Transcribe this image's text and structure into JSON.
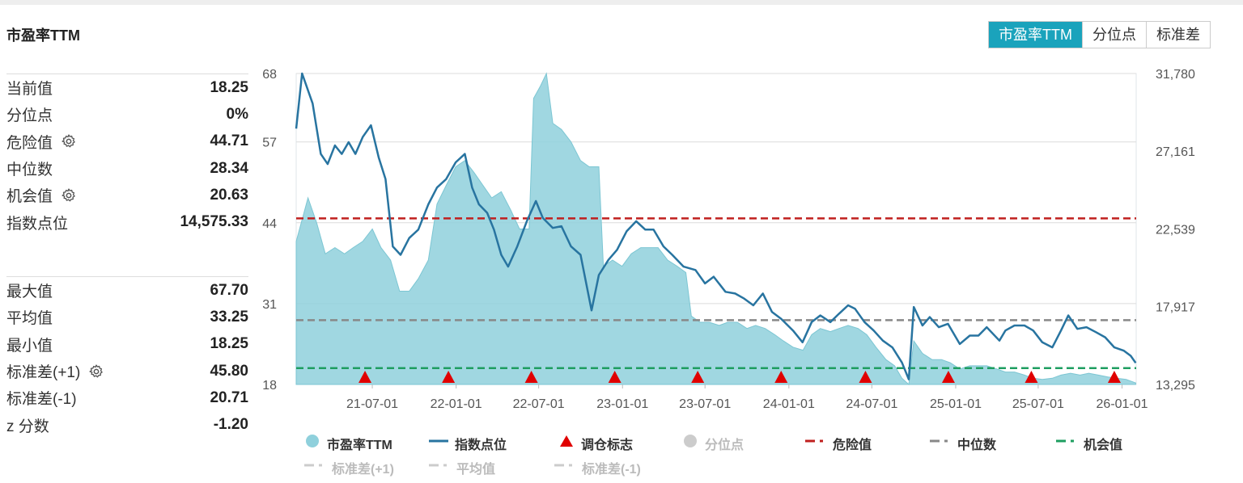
{
  "header": {
    "title": "市盈率TTM"
  },
  "tabs": [
    {
      "label": "市盈率TTM",
      "active": true
    },
    {
      "label": "分位点",
      "active": false
    },
    {
      "label": "标准差",
      "active": false
    }
  ],
  "stats_top": [
    {
      "label": "当前值",
      "value": "18.25",
      "gear": false
    },
    {
      "label": "分位点",
      "value": "0%",
      "gear": false
    },
    {
      "label": "危险值",
      "value": "44.71",
      "gear": true
    },
    {
      "label": "中位数",
      "value": "28.34",
      "gear": false
    },
    {
      "label": "机会值",
      "value": "20.63",
      "gear": true
    },
    {
      "label": "指数点位",
      "value": "14,575.33",
      "gear": false
    }
  ],
  "stats_bottom": [
    {
      "label": "最大值",
      "value": "67.70",
      "gear": false
    },
    {
      "label": "平均值",
      "value": "33.25",
      "gear": false
    },
    {
      "label": "最小值",
      "value": "18.25",
      "gear": false
    },
    {
      "label": "标准差(+1)",
      "value": "45.80",
      "gear": true
    },
    {
      "label": "标准差(-1)",
      "value": "20.71",
      "gear": false
    },
    {
      "label": "z 分数",
      "value": "-1.20",
      "gear": false
    }
  ],
  "legend": [
    {
      "label": "市盈率TTM",
      "type": "circle",
      "color": "#8fd0dc",
      "active": true
    },
    {
      "label": "指数点位",
      "type": "line",
      "color": "#2874a0",
      "active": true
    },
    {
      "label": "调仓标志",
      "type": "triangle",
      "color": "#e00000",
      "active": true
    },
    {
      "label": "分位点",
      "type": "circle",
      "color": "#cccccc",
      "active": false
    },
    {
      "label": "危险值",
      "type": "dash",
      "color": "#c0201f",
      "active": true
    },
    {
      "label": "中位数",
      "type": "dash",
      "color": "#888888",
      "active": true
    },
    {
      "label": "机会值",
      "type": "dash",
      "color": "#1e9e60",
      "active": true
    },
    {
      "label": "标准差(+1)",
      "type": "dash",
      "color": "#cccccc",
      "active": false
    },
    {
      "label": "平均值",
      "type": "dash",
      "color": "#cccccc",
      "active": false
    },
    {
      "label": "标准差(-1)",
      "type": "dash",
      "color": "#cccccc",
      "active": false
    }
  ],
  "chart_data": {
    "type": "area",
    "left_axis": {
      "ticks": [
        18,
        31,
        44,
        57,
        68
      ],
      "range": [
        18,
        68
      ]
    },
    "right_axis": {
      "ticks": [
        "13,295",
        "17,917",
        "22,539",
        "27,161",
        "31,780"
      ],
      "range": [
        13295,
        31780
      ]
    },
    "x_range": [
      "2021-01-15",
      "2026-02-01"
    ],
    "x_ticks": [
      "21-07-01",
      "22-01-01",
      "22-07-01",
      "23-01-01",
      "23-07-01",
      "24-01-01",
      "24-07-01",
      "25-01-01",
      "25-07-01",
      "26-01-01"
    ],
    "reference_lines": [
      {
        "name": "危险值",
        "value": 44.71,
        "color": "#c0201f"
      },
      {
        "name": "中位数",
        "value": 28.34,
        "color": "#888888"
      },
      {
        "name": "机会值",
        "value": 20.63,
        "color": "#1e9e60"
      }
    ],
    "rebalance_markers": [
      "2021-06-15",
      "2021-12-15",
      "2022-06-15",
      "2022-12-15",
      "2023-06-15",
      "2023-12-15",
      "2024-06-17",
      "2024-12-16",
      "2025-06-16",
      "2025-12-15"
    ],
    "series": [
      {
        "name": "市盈率TTM",
        "axis": "left",
        "color": "#8fd0dc",
        "points": [
          [
            "2021-01-15",
            41
          ],
          [
            "2021-02-10",
            48
          ],
          [
            "2021-03-01",
            44
          ],
          [
            "2021-03-20",
            39
          ],
          [
            "2021-04-10",
            40
          ],
          [
            "2021-05-01",
            39
          ],
          [
            "2021-05-20",
            40
          ],
          [
            "2021-06-10",
            41
          ],
          [
            "2021-07-01",
            43
          ],
          [
            "2021-07-20",
            40
          ],
          [
            "2021-08-10",
            38
          ],
          [
            "2021-08-30",
            33
          ],
          [
            "2021-09-20",
            33
          ],
          [
            "2021-10-10",
            35
          ],
          [
            "2021-11-01",
            38
          ],
          [
            "2021-11-20",
            47
          ],
          [
            "2021-12-10",
            50
          ],
          [
            "2021-12-31",
            53
          ],
          [
            "2022-01-20",
            54
          ],
          [
            "2022-02-10",
            52
          ],
          [
            "2022-03-01",
            50
          ],
          [
            "2022-03-20",
            48
          ],
          [
            "2022-04-10",
            49
          ],
          [
            "2022-05-01",
            46
          ],
          [
            "2022-05-20",
            43
          ],
          [
            "2022-06-10",
            43
          ],
          [
            "2022-06-20",
            64
          ],
          [
            "2022-07-05",
            66
          ],
          [
            "2022-07-18",
            68
          ],
          [
            "2022-08-01",
            60
          ],
          [
            "2022-08-20",
            59
          ],
          [
            "2022-09-10",
            57
          ],
          [
            "2022-10-01",
            54
          ],
          [
            "2022-10-20",
            53
          ],
          [
            "2022-11-10",
            53
          ],
          [
            "2022-11-20",
            37
          ],
          [
            "2022-12-10",
            38
          ],
          [
            "2022-12-31",
            37
          ],
          [
            "2023-01-20",
            39
          ],
          [
            "2023-02-10",
            40
          ],
          [
            "2023-03-01",
            40
          ],
          [
            "2023-03-20",
            40
          ],
          [
            "2023-04-10",
            38
          ],
          [
            "2023-05-01",
            37
          ],
          [
            "2023-05-20",
            36
          ],
          [
            "2023-06-01",
            29
          ],
          [
            "2023-06-20",
            28
          ],
          [
            "2023-07-10",
            28
          ],
          [
            "2023-08-01",
            27.5
          ],
          [
            "2023-08-20",
            28
          ],
          [
            "2023-09-10",
            28
          ],
          [
            "2023-10-01",
            27
          ],
          [
            "2023-10-20",
            27.5
          ],
          [
            "2023-11-10",
            27
          ],
          [
            "2023-12-01",
            26
          ],
          [
            "2023-12-20",
            25
          ],
          [
            "2024-01-10",
            24
          ],
          [
            "2024-02-01",
            23.5
          ],
          [
            "2024-02-20",
            26
          ],
          [
            "2024-03-10",
            27
          ],
          [
            "2024-04-01",
            26.5
          ],
          [
            "2024-04-20",
            27
          ],
          [
            "2024-05-10",
            27.5
          ],
          [
            "2024-06-01",
            27
          ],
          [
            "2024-06-20",
            26
          ],
          [
            "2024-07-10",
            24
          ],
          [
            "2024-08-01",
            22
          ],
          [
            "2024-08-20",
            21
          ],
          [
            "2024-09-05",
            19
          ],
          [
            "2024-09-20",
            18
          ],
          [
            "2024-10-01",
            25
          ],
          [
            "2024-10-20",
            23
          ],
          [
            "2024-11-10",
            22
          ],
          [
            "2024-12-01",
            22
          ],
          [
            "2024-12-20",
            21.5
          ],
          [
            "2025-01-10",
            20.5
          ],
          [
            "2025-02-01",
            21
          ],
          [
            "2025-02-20",
            21
          ],
          [
            "2025-03-10",
            21
          ],
          [
            "2025-04-01",
            20.5
          ],
          [
            "2025-04-20",
            20
          ],
          [
            "2025-05-10",
            20
          ],
          [
            "2025-06-01",
            19.5
          ],
          [
            "2025-06-20",
            19
          ],
          [
            "2025-07-10",
            18.8
          ],
          [
            "2025-08-01",
            19
          ],
          [
            "2025-08-20",
            19.5
          ],
          [
            "2025-09-10",
            19.8
          ],
          [
            "2025-10-01",
            19.5
          ],
          [
            "2025-10-20",
            19.8
          ],
          [
            "2025-11-10",
            19.5
          ],
          [
            "2025-12-01",
            19.2
          ],
          [
            "2025-12-20",
            19
          ],
          [
            "2026-01-10",
            18.8
          ],
          [
            "2026-01-31",
            18.25
          ]
        ]
      },
      {
        "name": "指数点位",
        "axis": "right",
        "color": "#2874a0",
        "points": [
          [
            "2021-01-15",
            28500
          ],
          [
            "2021-01-28",
            31780
          ],
          [
            "2021-02-20",
            30000
          ],
          [
            "2021-03-10",
            27000
          ],
          [
            "2021-03-25",
            26400
          ],
          [
            "2021-04-10",
            27500
          ],
          [
            "2021-04-25",
            27000
          ],
          [
            "2021-05-10",
            27700
          ],
          [
            "2021-05-25",
            27000
          ],
          [
            "2021-06-10",
            28000
          ],
          [
            "2021-06-28",
            28700
          ],
          [
            "2021-07-15",
            26800
          ],
          [
            "2021-07-30",
            25500
          ],
          [
            "2021-08-15",
            21500
          ],
          [
            "2021-09-01",
            21000
          ],
          [
            "2021-09-20",
            22000
          ],
          [
            "2021-10-10",
            22500
          ],
          [
            "2021-11-01",
            24000
          ],
          [
            "2021-11-20",
            25000
          ],
          [
            "2021-12-10",
            25500
          ],
          [
            "2021-12-31",
            26500
          ],
          [
            "2022-01-20",
            27000
          ],
          [
            "2022-02-05",
            25000
          ],
          [
            "2022-02-20",
            24000
          ],
          [
            "2022-03-10",
            23500
          ],
          [
            "2022-03-25",
            22500
          ],
          [
            "2022-04-10",
            21000
          ],
          [
            "2022-04-25",
            20300
          ],
          [
            "2022-05-15",
            21500
          ],
          [
            "2022-06-05",
            23000
          ],
          [
            "2022-06-25",
            24200
          ],
          [
            "2022-07-10",
            23200
          ],
          [
            "2022-08-01",
            22600
          ],
          [
            "2022-08-20",
            22700
          ],
          [
            "2022-09-10",
            21500
          ],
          [
            "2022-10-01",
            21000
          ],
          [
            "2022-10-25",
            17700
          ],
          [
            "2022-11-10",
            19800
          ],
          [
            "2022-12-01",
            20700
          ],
          [
            "2022-12-20",
            21300
          ],
          [
            "2023-01-10",
            22400
          ],
          [
            "2023-01-31",
            23000
          ],
          [
            "2023-02-20",
            22500
          ],
          [
            "2023-03-10",
            22500
          ],
          [
            "2023-04-01",
            21500
          ],
          [
            "2023-04-20",
            21000
          ],
          [
            "2023-05-15",
            20300
          ],
          [
            "2023-06-10",
            20100
          ],
          [
            "2023-07-01",
            19300
          ],
          [
            "2023-07-20",
            19700
          ],
          [
            "2023-08-15",
            18800
          ],
          [
            "2023-09-05",
            18700
          ],
          [
            "2023-09-25",
            18400
          ],
          [
            "2023-10-15",
            18000
          ],
          [
            "2023-11-05",
            18700
          ],
          [
            "2023-11-25",
            17600
          ],
          [
            "2023-12-15",
            17200
          ],
          [
            "2024-01-10",
            16500
          ],
          [
            "2024-01-31",
            15800
          ],
          [
            "2024-02-20",
            17000
          ],
          [
            "2024-03-10",
            17400
          ],
          [
            "2024-04-01",
            17000
          ],
          [
            "2024-04-20",
            17500
          ],
          [
            "2024-05-10",
            18000
          ],
          [
            "2024-05-25",
            17800
          ],
          [
            "2024-06-15",
            17000
          ],
          [
            "2024-07-05",
            16500
          ],
          [
            "2024-07-25",
            15900
          ],
          [
            "2024-08-15",
            15500
          ],
          [
            "2024-09-05",
            14600
          ],
          [
            "2024-09-20",
            13600
          ],
          [
            "2024-10-01",
            17900
          ],
          [
            "2024-10-20",
            16800
          ],
          [
            "2024-11-05",
            17300
          ],
          [
            "2024-11-25",
            16700
          ],
          [
            "2024-12-15",
            16900
          ],
          [
            "2025-01-10",
            15700
          ],
          [
            "2025-02-01",
            16200
          ],
          [
            "2025-02-20",
            16200
          ],
          [
            "2025-03-10",
            16700
          ],
          [
            "2025-04-07",
            15900
          ],
          [
            "2025-04-20",
            16500
          ],
          [
            "2025-05-10",
            16800
          ],
          [
            "2025-06-01",
            16800
          ],
          [
            "2025-06-20",
            16500
          ],
          [
            "2025-07-10",
            15800
          ],
          [
            "2025-08-01",
            15500
          ],
          [
            "2025-08-20",
            16500
          ],
          [
            "2025-09-05",
            17400
          ],
          [
            "2025-09-25",
            16600
          ],
          [
            "2025-10-15",
            16700
          ],
          [
            "2025-11-05",
            16400
          ],
          [
            "2025-11-25",
            16100
          ],
          [
            "2025-12-15",
            15500
          ],
          [
            "2026-01-05",
            15300
          ],
          [
            "2026-01-20",
            15000
          ],
          [
            "2026-01-31",
            14575
          ]
        ]
      }
    ]
  }
}
